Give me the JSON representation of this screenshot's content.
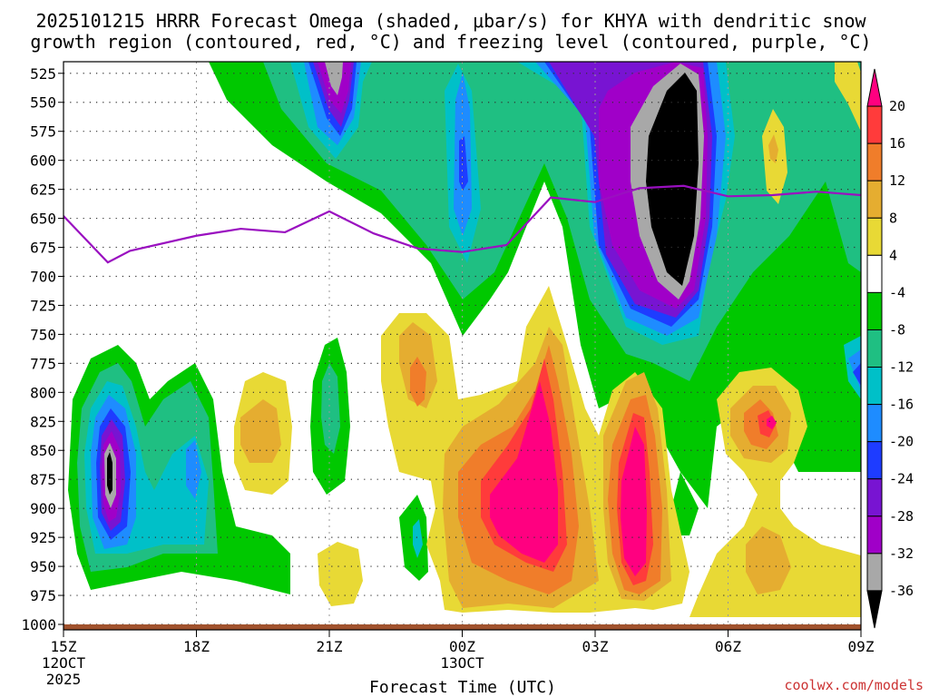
{
  "chart_data": {
    "type": "time-height contour",
    "title_line1": "2025101215 HRRR Forecast Omega (shaded, μbar/s) for KHYA with dendritic snow",
    "title_line2": "growth region (contoured, red, °C) and freezing level (contoured, purple, °C)",
    "xlabel": "Forecast Time (UTC)",
    "credit": "coolwx.com/models",
    "x_ticks": [
      {
        "hour": 0,
        "label": "15Z",
        "sub1": "12OCT",
        "sub2": "2025"
      },
      {
        "hour": 3,
        "label": "18Z",
        "sub1": "",
        "sub2": ""
      },
      {
        "hour": 6,
        "label": "21Z",
        "sub1": "",
        "sub2": ""
      },
      {
        "hour": 9,
        "label": "00Z",
        "sub1": "13OCT",
        "sub2": ""
      },
      {
        "hour": 12,
        "label": "03Z",
        "sub1": "",
        "sub2": ""
      },
      {
        "hour": 15,
        "label": "06Z",
        "sub1": "",
        "sub2": ""
      },
      {
        "hour": 18,
        "label": "09Z",
        "sub1": "",
        "sub2": ""
      }
    ],
    "x_range_hours": [
      0,
      18
    ],
    "y_ticks": [
      "525",
      "550",
      "575",
      "600",
      "625",
      "650",
      "675",
      "700",
      "725",
      "750",
      "775",
      "800",
      "825",
      "850",
      "875",
      "900",
      "925",
      "950",
      "975",
      "1000"
    ],
    "y_range_mb": [
      1000,
      515
    ],
    "colorbar": {
      "labels": [
        "20",
        "16",
        "12",
        "8",
        "4",
        "-4",
        "-8",
        "-12",
        "-16",
        "-20",
        "-24",
        "-28",
        "-32",
        "-36"
      ],
      "bins": [
        {
          "range": ">20",
          "color": "#ff0080"
        },
        {
          "range": "16 to 20",
          "color": "#ff3b3b"
        },
        {
          "range": "12 to 16",
          "color": "#f07d2a"
        },
        {
          "range": "8 to 12",
          "color": "#e5ad30"
        },
        {
          "range": "4 to 8",
          "color": "#e8d935"
        },
        {
          "range": "-4 to 4",
          "color": "#ffffff"
        },
        {
          "range": "-8 to -4",
          "color": "#00c800"
        },
        {
          "range": "-12 to -8",
          "color": "#1fbf82"
        },
        {
          "range": "-16 to -12",
          "color": "#00c0c8"
        },
        {
          "range": "-20 to -16",
          "color": "#1e8cff"
        },
        {
          "range": "-24 to -20",
          "color": "#1e3cff"
        },
        {
          "range": "-28 to -24",
          "color": "#7814d2"
        },
        {
          "range": "-32 to -28",
          "color": "#a000c8"
        },
        {
          "range": "-36 to -32",
          "color": "#a8a8a8"
        },
        {
          "range": "<-36",
          "color": "#000000"
        }
      ]
    },
    "freezing_level": {
      "color": "#9a10c0",
      "points": [
        {
          "hour": 0.0,
          "mb": 648
        },
        {
          "hour": 1.0,
          "mb": 688
        },
        {
          "hour": 1.5,
          "mb": 678
        },
        {
          "hour": 3.0,
          "mb": 665
        },
        {
          "hour": 4.0,
          "mb": 659
        },
        {
          "hour": 5.0,
          "mb": 662
        },
        {
          "hour": 6.0,
          "mb": 644
        },
        {
          "hour": 7.0,
          "mb": 663
        },
        {
          "hour": 8.0,
          "mb": 676
        },
        {
          "hour": 9.0,
          "mb": 679
        },
        {
          "hour": 10.0,
          "mb": 673
        },
        {
          "hour": 11.0,
          "mb": 632
        },
        {
          "hour": 12.0,
          "mb": 636
        },
        {
          "hour": 13.0,
          "mb": 624
        },
        {
          "hour": 14.0,
          "mb": 622
        },
        {
          "hour": 15.0,
          "mb": 631
        },
        {
          "hour": 16.0,
          "mb": 630
        },
        {
          "hour": 17.0,
          "mb": 627
        },
        {
          "hour": 18.0,
          "mb": 630
        }
      ]
    },
    "omega_regions": [
      {
        "name": "upper-ascent",
        "hour0": 3.5,
        "hour1": 18.0,
        "mb0": 515,
        "mb1": 700,
        "min_value": -40
      },
      {
        "name": "early-ascent",
        "hour0": 0.3,
        "hour1": 4.8,
        "mb0": 740,
        "mb1": 985,
        "min_value": -33
      },
      {
        "name": "mid-descent",
        "hour0": 8.5,
        "hour1": 12.0,
        "mb0": 680,
        "mb1": 990,
        "max_value": 22
      },
      {
        "name": "late-descent",
        "hour0": 12.3,
        "hour1": 18.0,
        "mb0": 770,
        "mb1": 1000,
        "max_value": 21
      }
    ]
  }
}
